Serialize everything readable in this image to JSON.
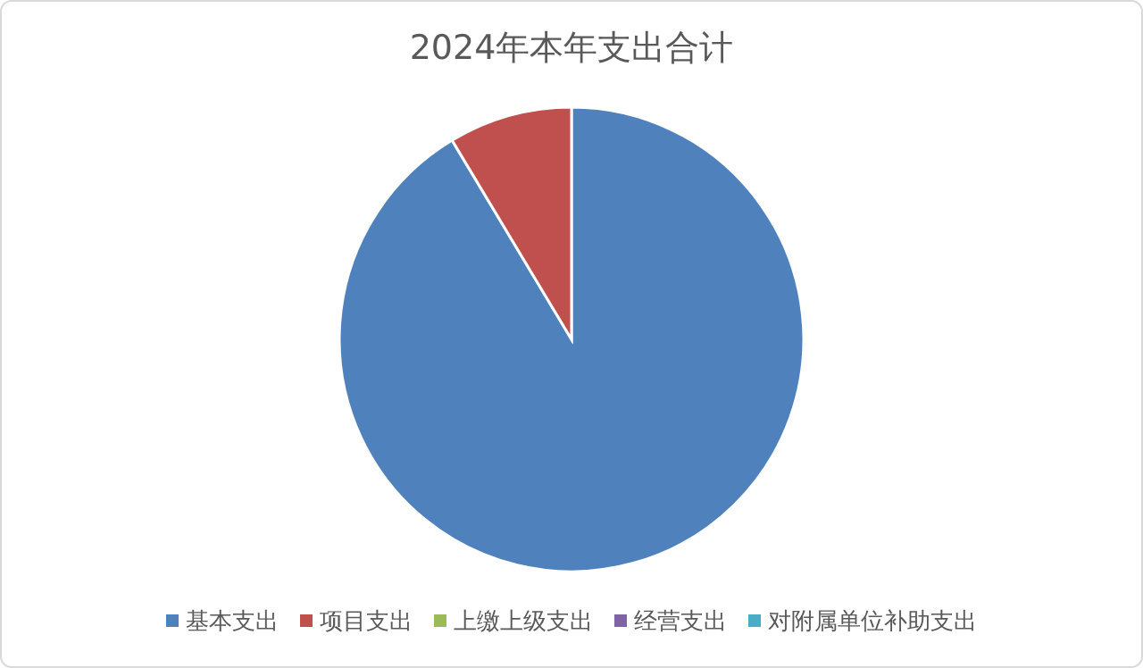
{
  "chart_data": {
    "type": "pie",
    "title": "2024年本年支出合计",
    "categories": [
      "基本支出",
      "项目支出",
      "上缴上级支出",
      "经营支出",
      "对附属单位补助支出"
    ],
    "values": [
      91.4,
      8.6,
      0,
      0,
      0
    ],
    "colors": [
      "#4f81bd",
      "#c0504d",
      "#9bbb59",
      "#8064a2",
      "#4bacc6"
    ],
    "legend": "bottom"
  }
}
